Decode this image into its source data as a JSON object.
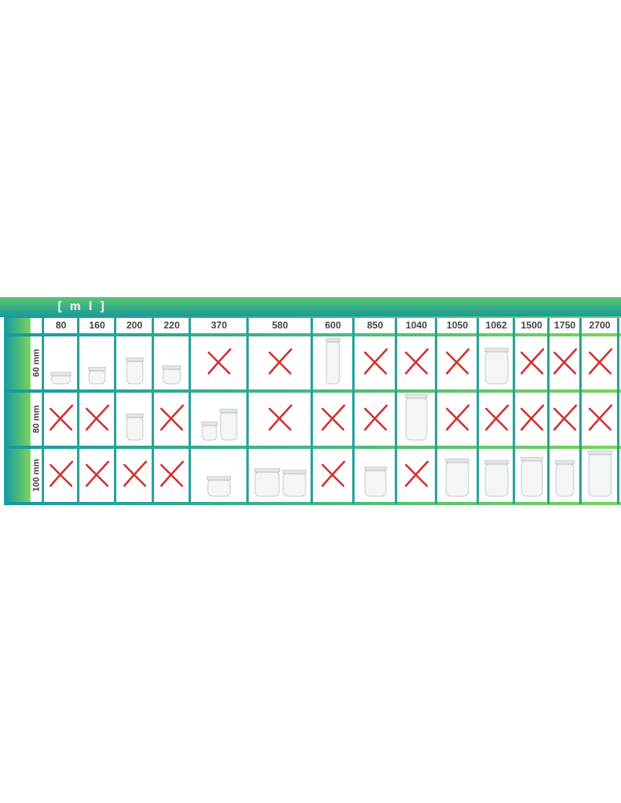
{
  "unit_label": "[ m l ]",
  "columns": [
    "80",
    "160",
    "200",
    "220",
    "370",
    "580",
    "600",
    "850",
    "1040",
    "1050",
    "1062",
    "1500",
    "1750",
    "2700"
  ],
  "rows": [
    {
      "label": "60 mm",
      "cells": [
        "jar",
        "jar",
        "jar",
        "jar",
        "none",
        "none",
        "jar",
        "none",
        "none",
        "none",
        "jar",
        "none",
        "none",
        "none"
      ]
    },
    {
      "label": "80 mm",
      "cells": [
        "none",
        "none",
        "jar",
        "none",
        "two-jars",
        "none",
        "none",
        "none",
        "jar",
        "none",
        "none",
        "none",
        "none",
        "none"
      ]
    },
    {
      "label": "100 mm",
      "cells": [
        "none",
        "none",
        "none",
        "none",
        "jar",
        "two-jars",
        "none",
        "jar",
        "none",
        "jar",
        "jar",
        "jar",
        "jar",
        "jar"
      ]
    }
  ],
  "colors": {
    "unavailable_mark": "#d32f2f",
    "teal": "#16999f",
    "green": "#6fd05e"
  }
}
